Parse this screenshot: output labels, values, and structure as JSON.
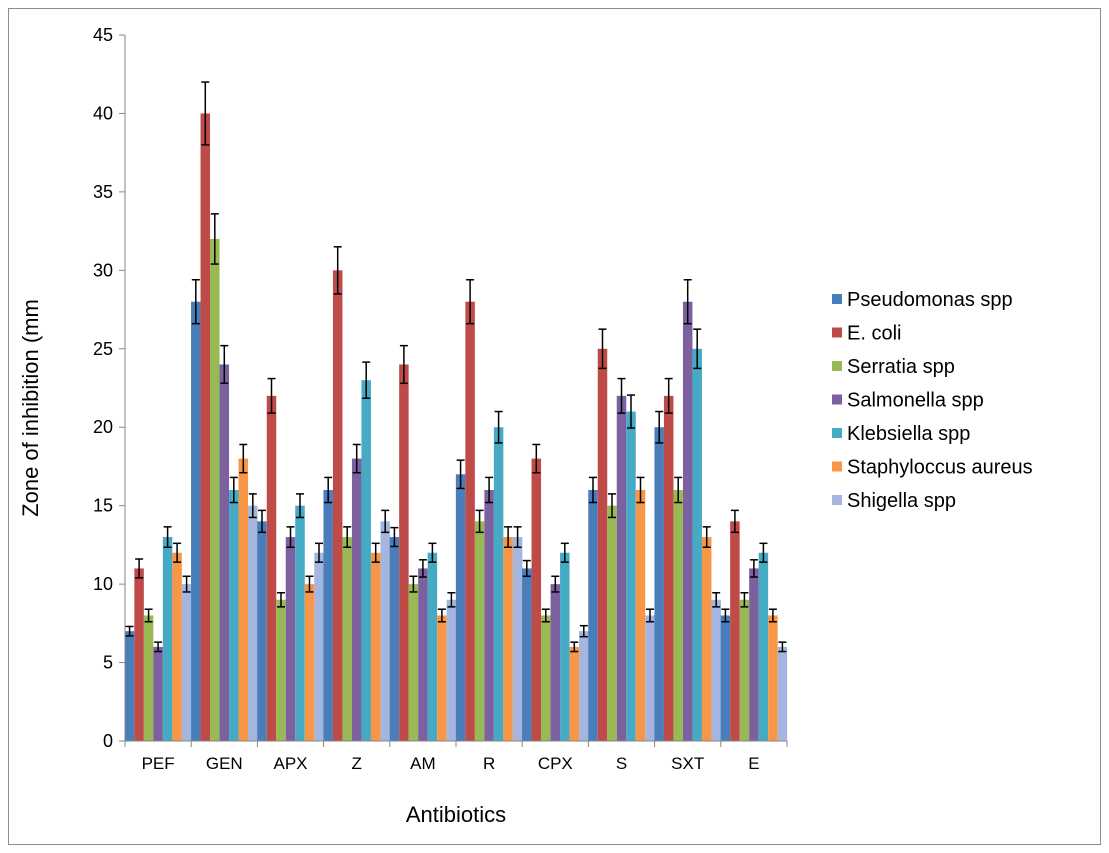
{
  "chart_data": {
    "type": "bar",
    "title": "",
    "xlabel": "Antibiotics",
    "ylabel": "Zone of inhibition (mm",
    "ylim": [
      0,
      45
    ],
    "yticks": [
      0,
      5,
      10,
      15,
      20,
      25,
      30,
      35,
      40,
      45
    ],
    "grid": false,
    "legend_position": "right",
    "error_bars": true,
    "categories": [
      "PEF",
      "GEN",
      "APX",
      "Z",
      "AM",
      "R",
      "CPX",
      "S",
      "SXT",
      "E"
    ],
    "series": [
      {
        "name": "Pseudomonas spp",
        "color": "#4a7ebb",
        "values": [
          7,
          28,
          14,
          16,
          13,
          17,
          11,
          16,
          20,
          8
        ],
        "errors": [
          0.3,
          1.4,
          0.7,
          0.8,
          0.6,
          0.9,
          0.5,
          0.8,
          1.0,
          0.4
        ]
      },
      {
        "name": "E. coli",
        "color": "#be4b48",
        "values": [
          11,
          40,
          22,
          30,
          24,
          28,
          18,
          25,
          22,
          14
        ],
        "errors": [
          0.6,
          2.0,
          1.1,
          1.5,
          1.2,
          1.4,
          0.9,
          1.25,
          1.1,
          0.7
        ]
      },
      {
        "name": "Serratia spp",
        "color": "#98b954",
        "values": [
          8,
          32,
          9,
          13,
          10,
          14,
          8,
          15,
          16,
          9
        ],
        "errors": [
          0.4,
          1.6,
          0.45,
          0.65,
          0.5,
          0.7,
          0.4,
          0.75,
          0.8,
          0.45
        ]
      },
      {
        "name": "Salmonella spp",
        "color": "#7d60a0",
        "values": [
          6,
          24,
          13,
          18,
          11,
          16,
          10,
          22,
          28,
          11
        ],
        "errors": [
          0.3,
          1.2,
          0.65,
          0.9,
          0.55,
          0.8,
          0.5,
          1.1,
          1.4,
          0.55
        ]
      },
      {
        "name": "Klebsiella spp",
        "color": "#46aac5",
        "values": [
          13,
          16,
          15,
          23,
          12,
          20,
          12,
          21,
          25,
          12
        ],
        "errors": [
          0.65,
          0.8,
          0.75,
          1.15,
          0.6,
          1.0,
          0.6,
          1.05,
          1.25,
          0.6
        ]
      },
      {
        "name": "Staphyloccus aureus",
        "color": "#f79646",
        "values": [
          12,
          18,
          10,
          12,
          8,
          13,
          6,
          16,
          13,
          8
        ],
        "errors": [
          0.6,
          0.9,
          0.5,
          0.6,
          0.4,
          0.65,
          0.3,
          0.8,
          0.65,
          0.4
        ]
      },
      {
        "name": "Shigella spp",
        "color": "#a5b6de",
        "values": [
          10,
          15,
          12,
          14,
          9,
          13,
          7,
          8,
          9,
          6
        ],
        "errors": [
          0.5,
          0.75,
          0.6,
          0.7,
          0.45,
          0.65,
          0.35,
          0.4,
          0.45,
          0.3
        ]
      }
    ]
  }
}
